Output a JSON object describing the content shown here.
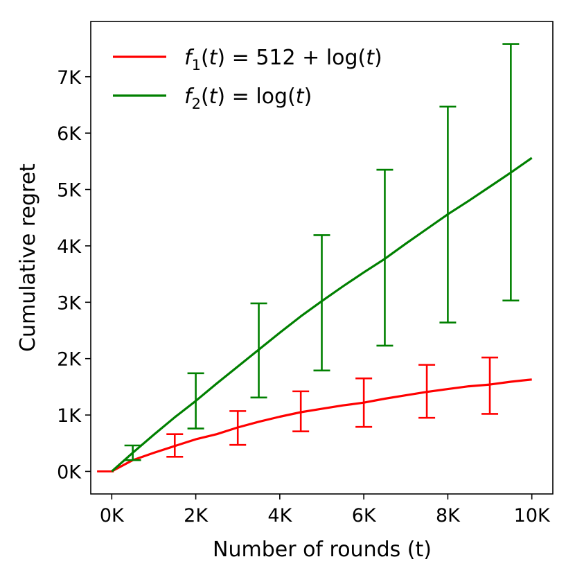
{
  "chart_data": {
    "type": "line",
    "title": "",
    "xlabel": "Number of rounds (t)",
    "ylabel": "Cumulative regret",
    "xlim": [
      -500,
      10500
    ],
    "ylim": [
      -400,
      7980
    ],
    "x_ticks": [
      0,
      2000,
      4000,
      6000,
      8000,
      10000
    ],
    "x_tick_labels": [
      "0K",
      "2K",
      "4K",
      "6K",
      "8K",
      "10K"
    ],
    "y_ticks": [
      0,
      1000,
      2000,
      3000,
      4000,
      5000,
      6000,
      7000
    ],
    "y_tick_labels": [
      "0K",
      "1K",
      "2K",
      "3K",
      "4K",
      "5K",
      "6K",
      "7K"
    ],
    "grid": false,
    "legend_position": "top-left",
    "series": [
      {
        "name": "f1",
        "legend": {
          "func": "f",
          "sub": "1",
          "open": "(",
          "var": "t",
          "close": ")",
          "rest": " = 512 + log(",
          "var2": "t",
          "end": ")"
        },
        "color": "#ff0000",
        "x": [
          0,
          500,
          1000,
          1500,
          2000,
          2500,
          3000,
          3500,
          4000,
          4500,
          5000,
          5500,
          6000,
          6500,
          7000,
          7500,
          8000,
          8500,
          9000,
          9500,
          10000
        ],
        "y": [
          0,
          200,
          330,
          450,
          570,
          660,
          780,
          880,
          970,
          1050,
          1110,
          1170,
          1220,
          1290,
          1350,
          1410,
          1460,
          1510,
          1540,
          1590,
          1630
        ],
        "errorbars": [
          {
            "x": -150,
            "low": 0,
            "high": 0
          },
          {
            "x": 1500,
            "low": 260,
            "high": 660
          },
          {
            "x": 3000,
            "low": 470,
            "high": 1070
          },
          {
            "x": 4500,
            "low": 710,
            "high": 1420
          },
          {
            "x": 6000,
            "low": 790,
            "high": 1650
          },
          {
            "x": 7500,
            "low": 950,
            "high": 1890
          },
          {
            "x": 9000,
            "low": 1020,
            "high": 2020
          }
        ]
      },
      {
        "name": "f2",
        "legend": {
          "func": "f",
          "sub": "2",
          "open": "(",
          "var": "t",
          "close": ")",
          "rest": " = log(",
          "var2": "t",
          "end": ")"
        },
        "color": "#008000",
        "x": [
          0,
          500,
          1000,
          1500,
          2000,
          2500,
          3000,
          3500,
          4000,
          4500,
          5000,
          5500,
          6000,
          6500,
          7000,
          7500,
          8000,
          8500,
          9000,
          9500,
          10000
        ],
        "y": [
          0,
          330,
          650,
          960,
          1250,
          1560,
          1860,
          2160,
          2460,
          2750,
          3020,
          3280,
          3530,
          3770,
          4040,
          4300,
          4560,
          4800,
          5050,
          5300,
          5560
        ],
        "errorbars": [
          {
            "x": 500,
            "low": 200,
            "high": 460
          },
          {
            "x": 2000,
            "low": 760,
            "high": 1740
          },
          {
            "x": 3500,
            "low": 1310,
            "high": 2980
          },
          {
            "x": 5000,
            "low": 1790,
            "high": 4190
          },
          {
            "x": 6500,
            "low": 2230,
            "high": 5350
          },
          {
            "x": 8000,
            "low": 2640,
            "high": 6470
          },
          {
            "x": 9500,
            "low": 3030,
            "high": 7580
          }
        ]
      }
    ]
  }
}
